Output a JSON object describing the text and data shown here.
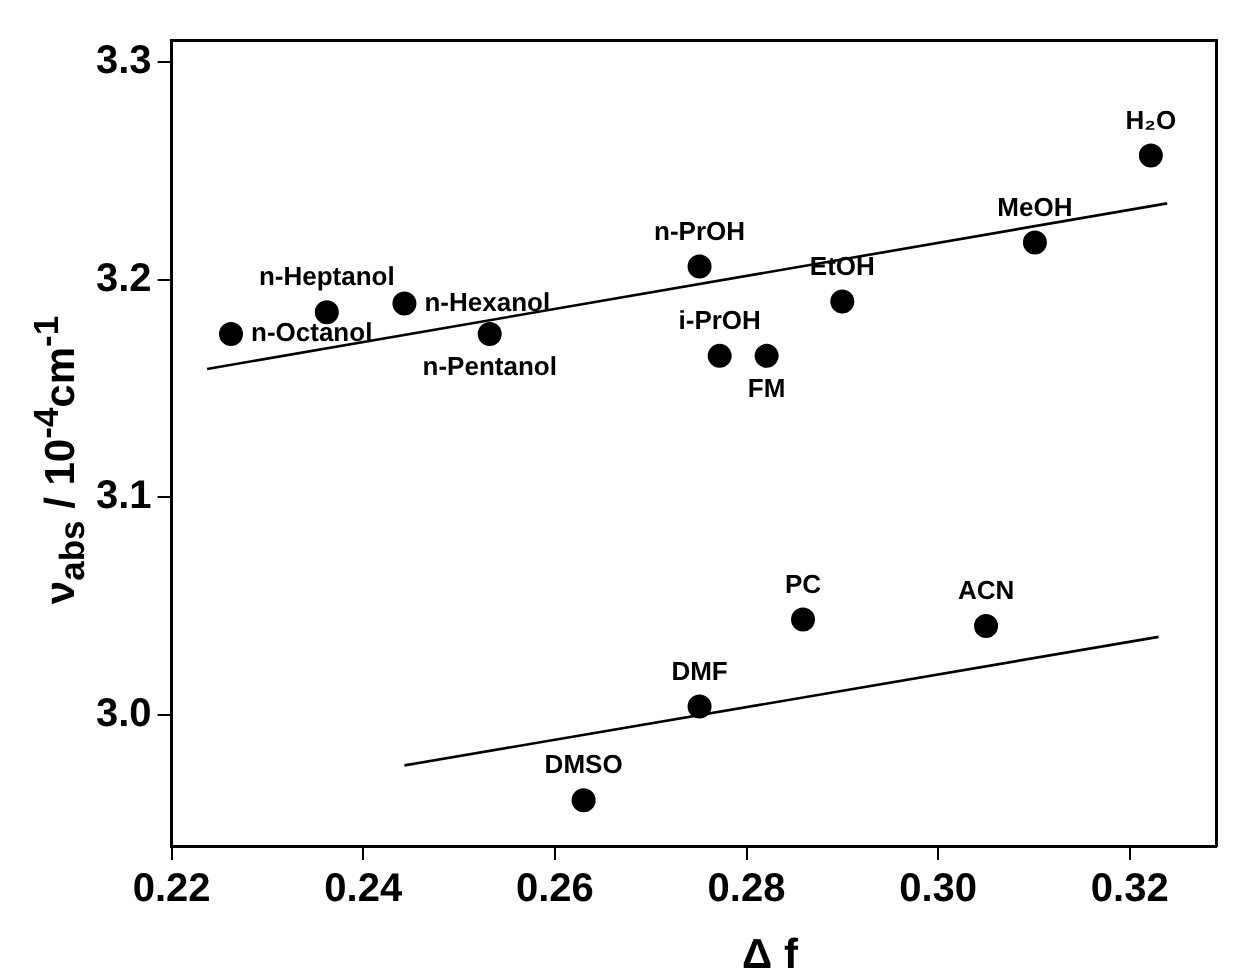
{
  "chart_data": {
    "type": "scatter",
    "xlabel": "Δ f",
    "ylabel": "ν$_{abs}$ / 10$^{-4}$cm$^{-1}$",
    "marker": "circle",
    "grid": false,
    "legend": false,
    "xlim": [
      0.22,
      0.329
    ],
    "xticks": [
      0.22,
      0.24,
      0.26,
      0.28,
      {
        "value": 0.3,
        "label": "0.30"
      },
      0.32
    ],
    "ylim": [
      2.94,
      3.31
    ],
    "yticks": [
      {
        "value": 3,
        "label": "3.0"
      },
      3.1,
      3.2,
      3.3
    ],
    "series": [
      {
        "color": "#000000",
        "x": [
          0.2262,
          0.2362,
          0.2443,
          0.2532,
          0.2751,
          0.2772,
          0.2821,
          0.29,
          0.3101,
          0.3222
        ],
        "values": [
          3.175,
          3.185,
          3.189,
          3.175,
          3.206,
          3.165,
          3.165,
          3.19,
          3.217,
          3.257
        ]
      },
      {
        "color": "#000000",
        "x": [
          0.263,
          0.2751,
          0.2859,
          0.305
        ],
        "values": [
          2.961,
          3.004,
          3.044,
          3.041
        ]
      },
      {
        "type": "line",
        "marker": "none",
        "color": "#000000",
        "x": [
          0.2237,
          0.3239
        ],
        "values": [
          3.159,
          3.235
        ]
      },
      {
        "type": "line",
        "marker": "none",
        "color": "#000000",
        "x": [
          0.2443,
          0.323
        ],
        "values": [
          2.977,
          3.036
        ]
      }
    ],
    "annotations": [
      {
        "text": "n-Octanol",
        "x": 0.2262,
        "y": 3.175
      },
      {
        "text": "n-Heptanol",
        "x": 0.2362,
        "y": 3.185
      },
      {
        "text": "n-Hexanol",
        "x": 0.2443,
        "y": 3.189
      },
      {
        "text": "n-Pentanol",
        "x": 0.2532,
        "y": 3.175
      },
      {
        "text": "n-PrOH",
        "x": 0.2751,
        "y": 3.206
      },
      {
        "text": "i-PrOH",
        "x": 0.2772,
        "y": 3.165
      },
      {
        "text": "FM",
        "x": 0.2821,
        "y": 3.165
      },
      {
        "text": "EtOH",
        "x": 0.29,
        "y": 3.19
      },
      {
        "text": "MeOH",
        "x": 0.3101,
        "y": 3.217
      },
      {
        "text": "H₂O",
        "x": 0.3222,
        "y": 3.257
      },
      {
        "text": "DMSO",
        "x": 0.263,
        "y": 2.961
      },
      {
        "text": "DMF",
        "x": 0.2751,
        "y": 3.004
      },
      {
        "text": "PC",
        "x": 0.2859,
        "y": 3.044
      },
      {
        "text": "ACN",
        "x": 0.305,
        "y": 3.041
      }
    ]
  }
}
